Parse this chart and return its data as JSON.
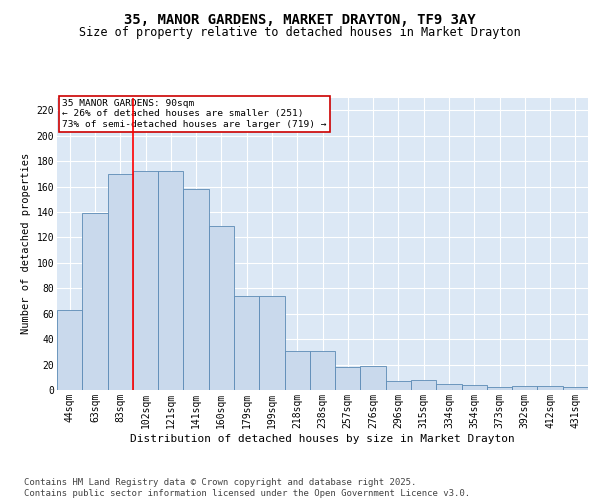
{
  "title": "35, MANOR GARDENS, MARKET DRAYTON, TF9 3AY",
  "subtitle": "Size of property relative to detached houses in Market Drayton",
  "xlabel": "Distribution of detached houses by size in Market Drayton",
  "ylabel": "Number of detached properties",
  "categories": [
    "44sqm",
    "63sqm",
    "83sqm",
    "102sqm",
    "121sqm",
    "141sqm",
    "160sqm",
    "179sqm",
    "199sqm",
    "218sqm",
    "238sqm",
    "257sqm",
    "276sqm",
    "296sqm",
    "315sqm",
    "334sqm",
    "354sqm",
    "373sqm",
    "392sqm",
    "412sqm",
    "431sqm"
  ],
  "values": [
    63,
    139,
    170,
    172,
    172,
    158,
    129,
    74,
    74,
    31,
    31,
    18,
    19,
    7,
    8,
    5,
    4,
    2,
    3,
    3,
    2
  ],
  "bar_color": "#c9d9ec",
  "bar_edge_color": "#5b8ab5",
  "red_line_x": 2.5,
  "annotation_title": "35 MANOR GARDENS: 90sqm",
  "annotation_line1": "← 26% of detached houses are smaller (251)",
  "annotation_line2": "73% of semi-detached houses are larger (719) →",
  "annotation_box_color": "#cc0000",
  "ylim": [
    0,
    230
  ],
  "yticks": [
    0,
    20,
    40,
    60,
    80,
    100,
    120,
    140,
    160,
    180,
    200,
    220
  ],
  "background_color": "#dce8f5",
  "footer": "Contains HM Land Registry data © Crown copyright and database right 2025.\nContains public sector information licensed under the Open Government Licence v3.0.",
  "title_fontsize": 10,
  "subtitle_fontsize": 8.5,
  "xlabel_fontsize": 8,
  "ylabel_fontsize": 7.5,
  "tick_fontsize": 7,
  "footer_fontsize": 6.5
}
